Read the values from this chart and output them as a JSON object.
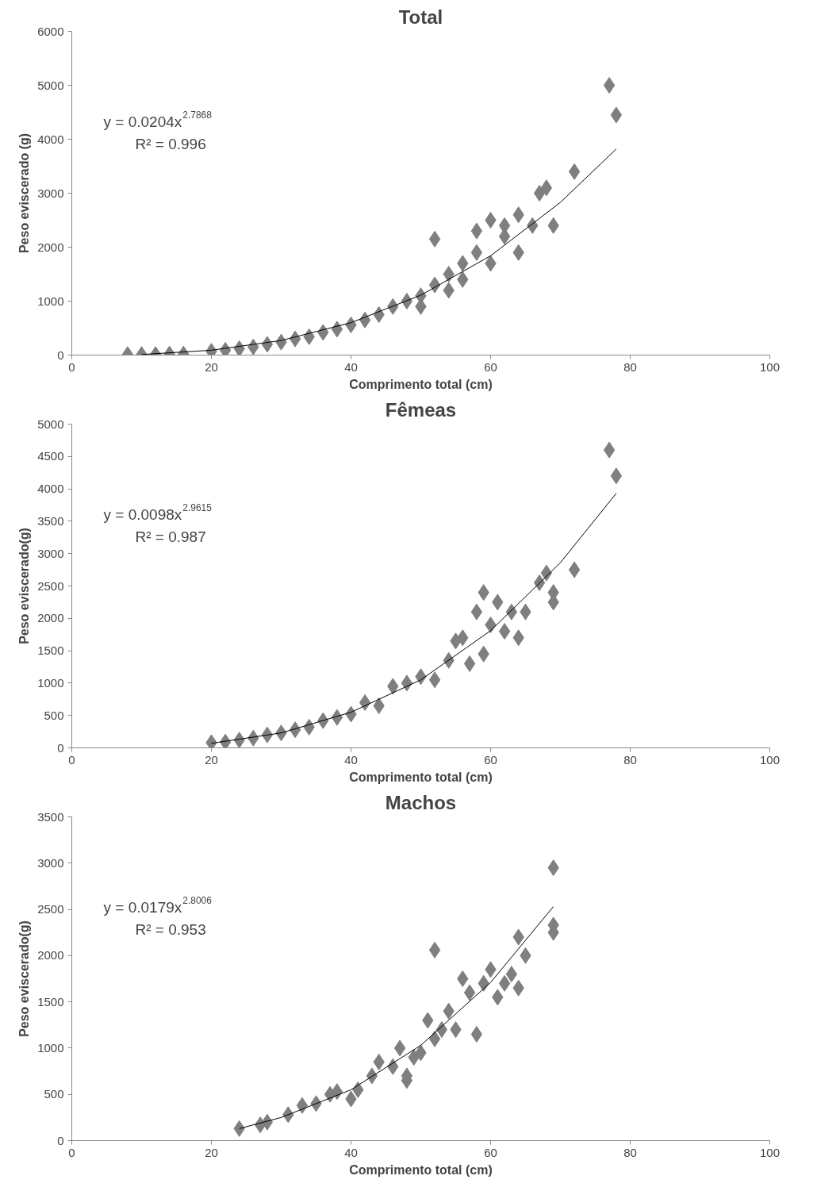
{
  "chart_data": [
    {
      "type": "scatter",
      "title": "Total",
      "xlabel": "Comprimento total (cm)",
      "ylabel": "Peso eviscerado (g)",
      "xlim": [
        0,
        100
      ],
      "ylim": [
        0,
        6000
      ],
      "xticks": [
        0,
        20,
        40,
        60,
        80,
        100
      ],
      "yticks": [
        0,
        1000,
        2000,
        3000,
        4000,
        5000,
        6000
      ],
      "grid": false,
      "marker": "diamond",
      "annotations": [
        "y = 0.0204x$^{2.7868}$",
        "R² = 0.996"
      ],
      "series": [
        {
          "color": "#7f7f7f",
          "x": [
            8,
            10,
            12,
            14,
            16,
            20,
            22,
            24,
            26,
            28,
            30,
            32,
            34,
            36,
            38,
            40,
            42,
            44,
            46,
            48,
            50,
            50,
            52,
            52,
            54,
            54,
            56,
            56,
            58,
            58,
            60,
            60,
            62,
            62,
            64,
            64,
            66,
            67,
            68,
            69,
            72,
            77,
            78
          ],
          "values": [
            10,
            10,
            10,
            20,
            20,
            70,
            90,
            120,
            150,
            200,
            240,
            300,
            340,
            420,
            480,
            560,
            650,
            750,
            900,
            1000,
            1100,
            900,
            1300,
            2150,
            1500,
            1200,
            1700,
            1400,
            1900,
            2300,
            2500,
            1700,
            2200,
            2400,
            2600,
            1900,
            2400,
            3000,
            3100,
            2400,
            3400,
            5000,
            4450
          ]
        },
        {
          "type": "line",
          "marker": "none",
          "color": "#000000",
          "x": [
            10,
            20,
            30,
            40,
            50,
            60,
            70,
            78
          ],
          "values": [
            10,
            90,
            270,
            600,
            1110,
            1840,
            2830,
            3820
          ]
        }
      ]
    },
    {
      "type": "scatter",
      "title": "Fêmeas",
      "xlabel": "Comprimento total (cm)",
      "ylabel": "Peso eviscerado(g)",
      "xlim": [
        0,
        100
      ],
      "ylim": [
        0,
        5000
      ],
      "xticks": [
        0,
        20,
        40,
        60,
        80,
        100
      ],
      "yticks": [
        0,
        500,
        1000,
        1500,
        2000,
        2500,
        3000,
        3500,
        4000,
        4500,
        5000
      ],
      "grid": false,
      "marker": "diamond",
      "annotations": [
        "y = 0.0098x$^{2.9615}$",
        "R² = 0.987"
      ],
      "series": [
        {
          "color": "#7f7f7f",
          "x": [
            20,
            22,
            24,
            26,
            28,
            30,
            32,
            34,
            36,
            38,
            40,
            42,
            44,
            46,
            48,
            50,
            52,
            54,
            55,
            56,
            57,
            58,
            59,
            59,
            60,
            61,
            62,
            63,
            64,
            65,
            67,
            68,
            69,
            69,
            72,
            77,
            78
          ],
          "values": [
            80,
            90,
            120,
            150,
            200,
            230,
            280,
            320,
            420,
            470,
            520,
            700,
            650,
            950,
            1000,
            1100,
            1050,
            1350,
            1650,
            1700,
            1300,
            2100,
            2400,
            1450,
            1900,
            2250,
            1800,
            2100,
            1700,
            2100,
            2550,
            2700,
            2400,
            2250,
            2750,
            4600,
            4200
          ]
        },
        {
          "type": "line",
          "marker": "none",
          "color": "#000000",
          "x": [
            20,
            30,
            40,
            50,
            60,
            70,
            78
          ],
          "values": [
            70,
            230,
            550,
            1050,
            1810,
            2860,
            3930
          ]
        }
      ]
    },
    {
      "type": "scatter",
      "title": "Machos",
      "xlabel": "Comprimento total (cm)",
      "ylabel": "Peso eviscerado(g)",
      "xlim": [
        0,
        100
      ],
      "ylim": [
        0,
        3500
      ],
      "xticks": [
        0,
        20,
        40,
        60,
        80,
        100
      ],
      "yticks": [
        0,
        500,
        1000,
        1500,
        2000,
        2500,
        3000,
        3500
      ],
      "grid": false,
      "marker": "diamond",
      "annotations": [
        "y = 0.0179x$^{2.8006}$",
        "R² = 0.953"
      ],
      "series": [
        {
          "color": "#7f7f7f",
          "x": [
            24,
            27,
            28,
            31,
            33,
            35,
            37,
            38,
            40,
            41,
            43,
            44,
            46,
            47,
            48,
            48,
            49,
            50,
            51,
            52,
            52,
            53,
            54,
            55,
            56,
            57,
            58,
            59,
            60,
            61,
            62,
            63,
            64,
            64,
            65,
            69,
            69,
            69
          ],
          "values": [
            130,
            170,
            200,
            280,
            380,
            400,
            500,
            530,
            450,
            550,
            700,
            850,
            800,
            1000,
            700,
            650,
            900,
            950,
            1300,
            1100,
            2060,
            1200,
            1400,
            1200,
            1750,
            1600,
            1150,
            1700,
            1850,
            1550,
            1700,
            1800,
            2200,
            1650,
            2000,
            2950,
            2330,
            2250
          ]
        },
        {
          "type": "line",
          "marker": "none",
          "color": "#000000",
          "x": [
            24,
            30,
            40,
            50,
            60,
            69
          ],
          "values": [
            130,
            250,
            550,
            1030,
            1710,
            2530
          ]
        }
      ]
    }
  ]
}
